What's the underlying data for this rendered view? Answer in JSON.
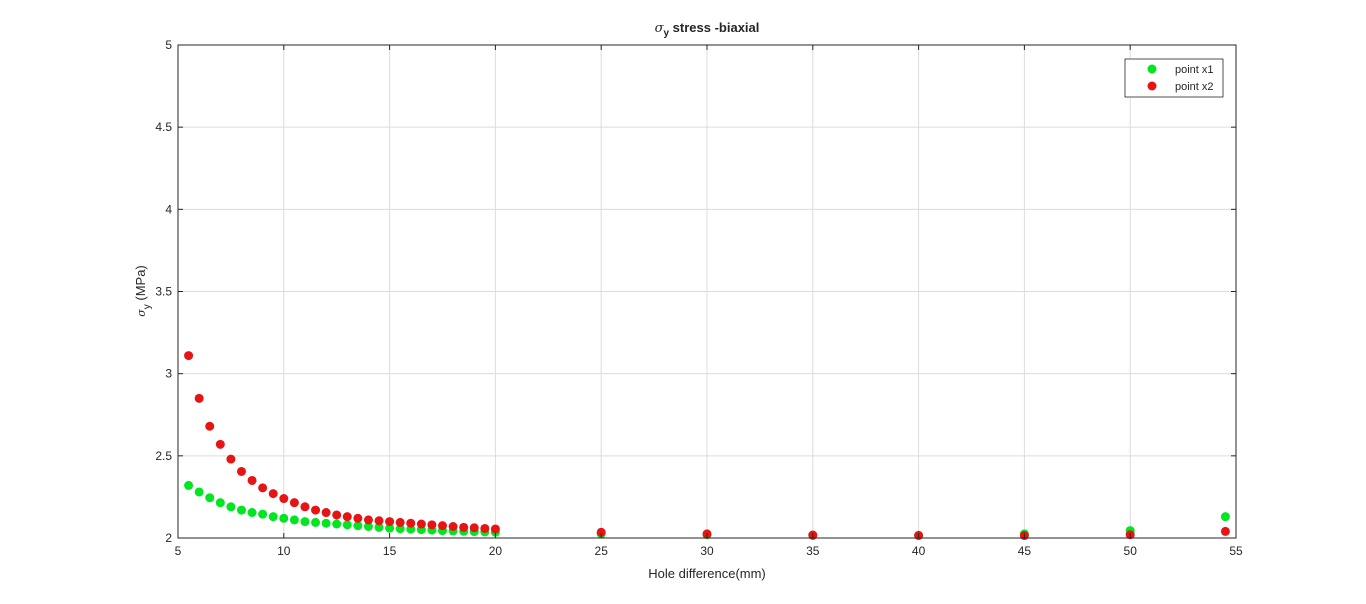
{
  "chart_data": {
    "type": "scatter",
    "title": {
      "symbol": "σ",
      "subscript": "y",
      "rest": " stress -biaxial"
    },
    "xlabel": "Hole difference(mm)",
    "ylabel": {
      "symbol": "σ",
      "subscript": "y",
      "rest": " (MPa)"
    },
    "xlim": [
      5,
      55
    ],
    "ylim": [
      2,
      5
    ],
    "xticks": [
      5,
      10,
      15,
      20,
      25,
      30,
      35,
      40,
      45,
      50,
      55
    ],
    "yticks": [
      2,
      2.5,
      3,
      3.5,
      4,
      4.5,
      5
    ],
    "xtick_labels": [
      "5",
      "10",
      "15",
      "20",
      "25",
      "30",
      "35",
      "40",
      "45",
      "50",
      "55"
    ],
    "ytick_labels": [
      "2",
      "2.5",
      "3",
      "3.5",
      "4",
      "4.5",
      "5"
    ],
    "grid": true,
    "legend_position": "top-right",
    "series": [
      {
        "name": "point x1",
        "color": "#00e620",
        "x": [
          5.5,
          6,
          6.5,
          7,
          7.5,
          8,
          8.5,
          9,
          9.5,
          10,
          10.5,
          11,
          11.5,
          12,
          12.5,
          13,
          13.5,
          14,
          14.5,
          15,
          15.5,
          16,
          16.5,
          17,
          17.5,
          18,
          18.5,
          19,
          19.5,
          20,
          25,
          30,
          35,
          40,
          45,
          50,
          54.5
        ],
        "y": [
          2.32,
          2.28,
          2.245,
          2.215,
          2.19,
          2.17,
          2.155,
          2.145,
          2.13,
          2.12,
          2.11,
          2.1,
          2.095,
          2.09,
          2.085,
          2.08,
          2.075,
          2.07,
          2.065,
          2.06,
          2.057,
          2.054,
          2.051,
          2.048,
          2.045,
          2.043,
          2.041,
          2.039,
          2.037,
          2.035,
          2.025,
          2.02,
          2.015,
          2.015,
          2.025,
          2.045,
          2.13
        ]
      },
      {
        "name": "point x2",
        "color": "#e61414",
        "x": [
          5.5,
          6,
          6.5,
          7,
          7.5,
          8,
          8.5,
          9,
          9.5,
          10,
          10.5,
          11,
          11.5,
          12,
          12.5,
          13,
          13.5,
          14,
          14.5,
          15,
          15.5,
          16,
          16.5,
          17,
          17.5,
          18,
          18.5,
          19,
          19.5,
          20,
          25,
          30,
          35,
          40,
          45,
          50,
          54.5
        ],
        "y": [
          3.11,
          2.85,
          2.68,
          2.57,
          2.48,
          2.405,
          2.35,
          2.305,
          2.27,
          2.24,
          2.215,
          2.19,
          2.17,
          2.155,
          2.14,
          2.13,
          2.12,
          2.11,
          2.105,
          2.1,
          2.095,
          2.09,
          2.085,
          2.08,
          2.075,
          2.07,
          2.065,
          2.062,
          2.058,
          2.055,
          2.035,
          2.025,
          2.018,
          2.016,
          2.015,
          2.02,
          2.04
        ]
      }
    ]
  }
}
